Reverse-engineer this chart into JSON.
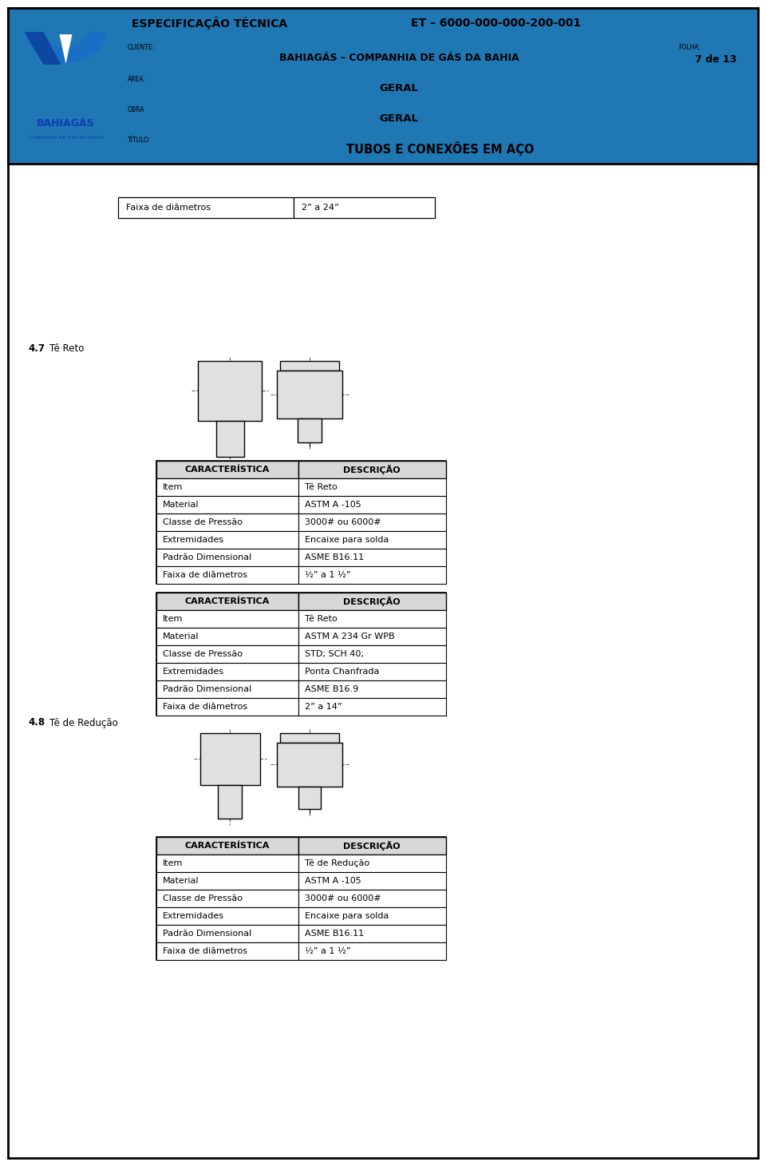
{
  "page_width": 9.6,
  "page_height": 14.6,
  "bg_color": "#ffffff",
  "header": {
    "title_label": "ESPECIFICAÇÃO TÉCNICA",
    "title_code": "ET – 6000-000-000-200-001",
    "cliente_label": "CLIENTE:",
    "cliente_value": "BAHIAGÁS – COMPANHIA DE GÁS DA BAHIA",
    "folha_label": "FOLHA:",
    "folha_value": "7 de 13",
    "area_label": "ÁREA:",
    "area_value": "GERAL",
    "obra_label": "OBRA",
    "obra_value": "GERAL",
    "titulo_label": "TÍTULO:",
    "titulo_value": "TUBOS E CONEXÕES EM AÇO"
  },
  "faixa_label": "Faixa de diâmetros",
  "faixa_value": "2” a 24”",
  "section47_label": "4.7",
  "section47_title": "Tê Reto",
  "table1_title_col1": "CARACTERÍSTICA",
  "table1_title_col2": "DESCRIÇÃO",
  "table1_rows": [
    [
      "Item",
      "Tê Reto"
    ],
    [
      "Material",
      "ASTM A -105"
    ],
    [
      "Classe de Pressão",
      "3000# ou 6000#"
    ],
    [
      "Extremidades",
      "Encaixe para solda"
    ],
    [
      "Padrão Dimensional",
      "ASME B16.11"
    ],
    [
      "Faixa de diâmetros",
      "½” a 1 ½”"
    ]
  ],
  "table2_title_col1": "CARACTERÍSTICA",
  "table2_title_col2": "DESCRIÇÃO",
  "table2_rows": [
    [
      "Item",
      "Tê Reto"
    ],
    [
      "Material",
      "ASTM A 234 Gr WPB"
    ],
    [
      "Classe de Pressão",
      "STD; SCH 40;"
    ],
    [
      "Extremidades",
      "Ponta Chanfrada"
    ],
    [
      "Padrão Dimensional",
      "ASME B16.9"
    ],
    [
      "Faixa de diâmetros",
      "2” a 14”"
    ]
  ],
  "section48_label": "4.8",
  "section48_title": "Tê de Redução",
  "table3_title_col1": "CARACTERÍSTICA",
  "table3_title_col2": "DESCRIÇÃO",
  "table3_rows": [
    [
      "Item",
      "Tê de Redução"
    ],
    [
      "Material",
      "ASTM A -105"
    ],
    [
      "Classe de Pressão",
      "3000# ou 6000#"
    ],
    [
      "Extremidades",
      "Encaixe para solda"
    ],
    [
      "Padrão Dimensional",
      "ASME B16.11"
    ],
    [
      "Faixa de diâmetros",
      "½” a 1 ½”"
    ]
  ]
}
